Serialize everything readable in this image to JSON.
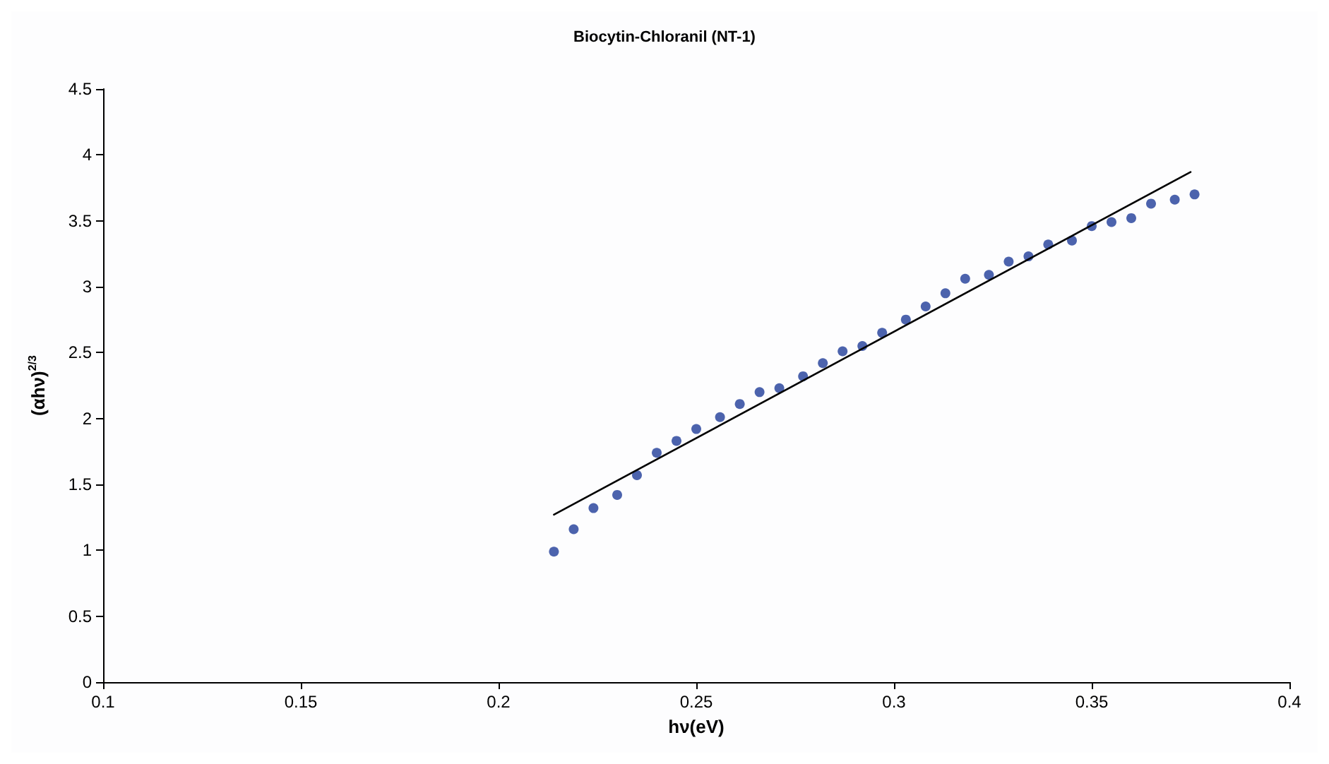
{
  "chart_data": {
    "type": "scatter",
    "title": "Biocytin-Chloranil (NT-1)",
    "xlabel": "hν(eV)",
    "ylabel": "(αhν)$^{2/3}$",
    "x": [
      0.214,
      0.219,
      0.224,
      0.23,
      0.235,
      0.24,
      0.245,
      0.25,
      0.256,
      0.261,
      0.266,
      0.271,
      0.277,
      0.282,
      0.287,
      0.292,
      0.297,
      0.303,
      0.308,
      0.313,
      0.318,
      0.324,
      0.329,
      0.334,
      0.339,
      0.345,
      0.35,
      0.355,
      0.36,
      0.365,
      0.371,
      0.376
    ],
    "series": [
      {
        "color": "#1f3c99",
        "marker": "circle",
        "values": [
          0.99,
          1.16,
          1.32,
          1.42,
          1.57,
          1.74,
          1.83,
          1.92,
          2.01,
          2.11,
          2.2,
          2.23,
          2.32,
          2.42,
          2.51,
          2.55,
          2.65,
          2.75,
          2.85,
          2.95,
          3.06,
          3.09,
          3.19,
          3.23,
          3.32,
          3.35,
          3.46,
          3.49,
          3.52,
          3.63,
          3.66,
          3.7
        ]
      },
      {
        "type": "line",
        "color": "#000000",
        "marker": "none",
        "x": [
          0.214,
          0.375
        ],
        "values": [
          1.27,
          3.87
        ]
      }
    ],
    "xlim": [
      0.1,
      0.4
    ],
    "xticks": [
      0.1,
      0.15,
      0.2,
      0.25,
      0.3,
      0.35,
      0.4
    ],
    "ylim": [
      0,
      4.5
    ],
    "yticks": [
      0,
      0.5,
      1,
      1.5,
      2,
      2.5,
      3,
      3.5,
      4,
      4.5
    ],
    "grid": false
  }
}
